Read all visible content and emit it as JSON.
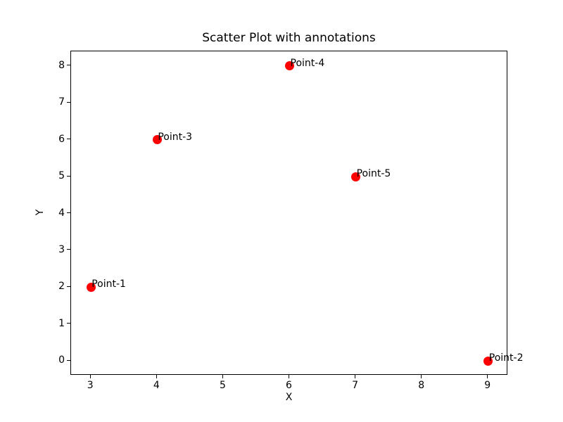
{
  "chart_data": {
    "type": "scatter",
    "title": "Scatter Plot with annotations",
    "xlabel": "X",
    "ylabel": "Y",
    "xlim": [
      2.7,
      9.3
    ],
    "ylim": [
      -0.4,
      8.4
    ],
    "xticks": [
      3,
      4,
      5,
      6,
      7,
      8,
      9
    ],
    "yticks": [
      0,
      1,
      2,
      3,
      4,
      5,
      6,
      7,
      8
    ],
    "grid": false,
    "legend": "none",
    "marker_color": "#ff0000",
    "marker_diameter_px": 13,
    "text_color": "#000000",
    "points": [
      {
        "label": "Point-1",
        "x": 3,
        "y": 2
      },
      {
        "label": "Point-2",
        "x": 9,
        "y": 0
      },
      {
        "label": "Point-3",
        "x": 4,
        "y": 6
      },
      {
        "label": "Point-4",
        "x": 6,
        "y": 8
      },
      {
        "label": "Point-5",
        "x": 7,
        "y": 5
      }
    ]
  }
}
